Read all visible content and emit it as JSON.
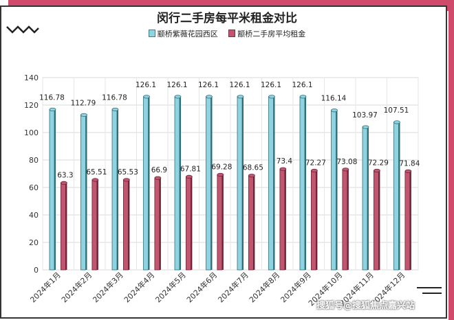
{
  "chart_data": {
    "type": "bar",
    "title": "闵行二手房每平米租金对比",
    "categories": [
      "2024年1月",
      "2024年2月",
      "2024年3月",
      "2024年4月",
      "2024年5月",
      "2024年6月",
      "2024年7月",
      "2024年8月",
      "2024年9月",
      "2024年10月",
      "2024年11月",
      "2024年12月"
    ],
    "series": [
      {
        "name": "颛桥紫薇花园西区",
        "values": [
          116.78,
          112.79,
          116.78,
          126.1,
          126.1,
          126.1,
          126.1,
          126.1,
          126.1,
          116.14,
          103.97,
          107.51
        ],
        "color": "#8fd3e0"
      },
      {
        "name": "颛桥二手房平均租金",
        "values": [
          63.3,
          65.51,
          65.53,
          66.9,
          67.81,
          69.28,
          68.65,
          73.4,
          72.27,
          73.08,
          72.29,
          71.84
        ],
        "color": "#c0566f"
      }
    ],
    "value_labels": [
      [
        "116.78",
        "112.79",
        "116.78",
        "126.1",
        "126.1",
        "126.1",
        "126.1",
        "126.1",
        "126.1",
        "116.14",
        "103.97",
        "107.51"
      ],
      [
        "63.3",
        "65.51",
        "65.53",
        "66.9",
        "67.81",
        "69.28",
        "68.65",
        "73.4",
        "72.27",
        "73.08",
        "72.29",
        "71.84"
      ]
    ],
    "ylim": [
      0,
      140
    ],
    "yticks": [
      0,
      20,
      40,
      60,
      80,
      100,
      120,
      140
    ],
    "grid": true,
    "legend_position": "top"
  },
  "watermark": "搜狐号@搜狐焦点嘉兴站"
}
